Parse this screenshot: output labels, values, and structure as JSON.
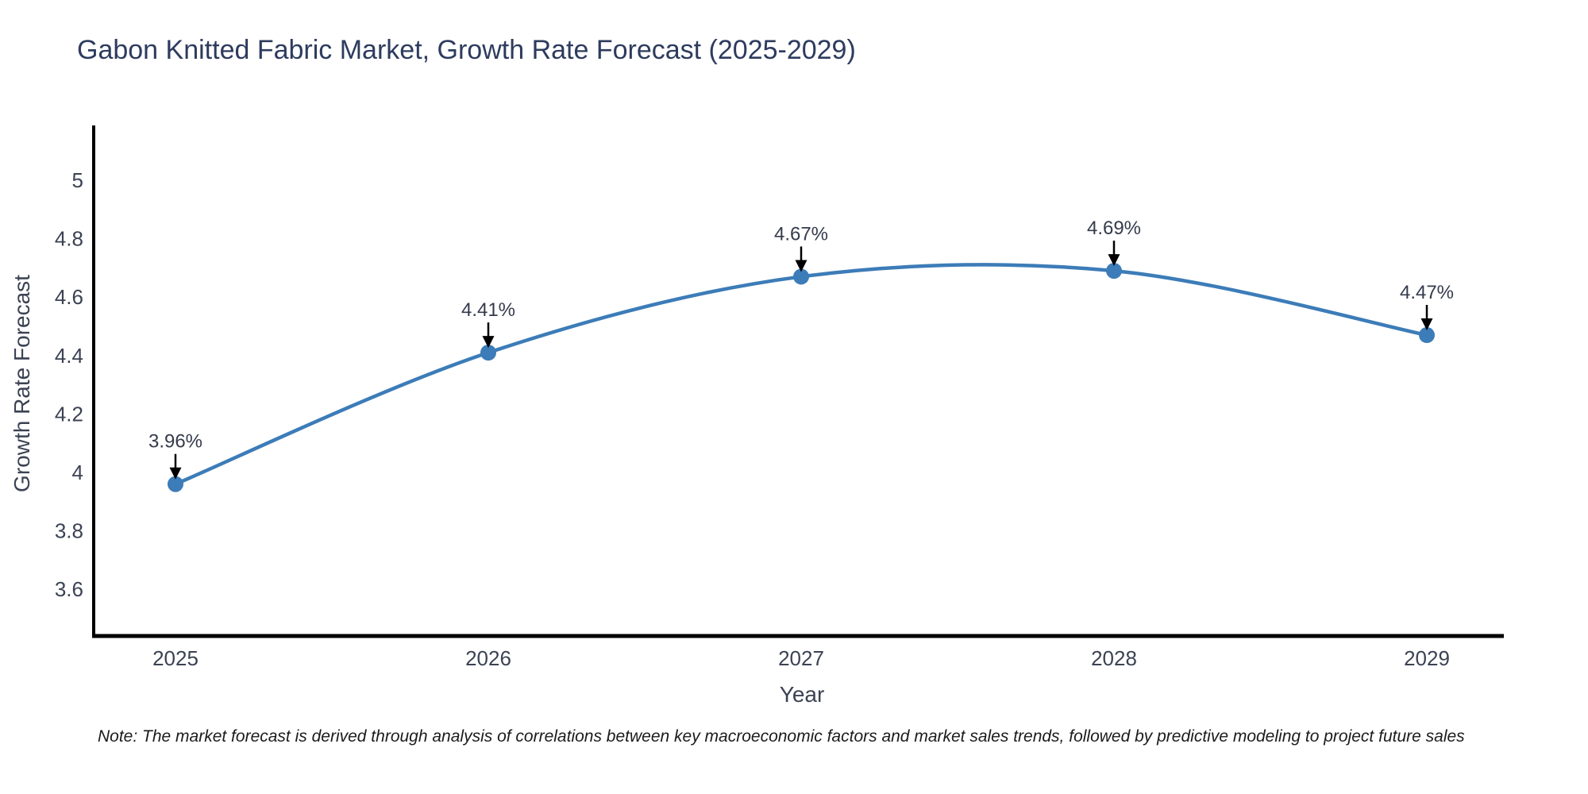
{
  "title": "Gabon Knitted Fabric Market, Growth Rate Forecast (2025-2029)",
  "note": "Note: The market forecast is derived through analysis of correlations between key macroeconomic factors and market sales trends, followed by predictive modeling to project future sales",
  "x_axis": {
    "title": "Year"
  },
  "y_axis": {
    "title": "Growth Rate Forecast"
  },
  "chart_data": {
    "type": "line",
    "title": "Gabon Knitted Fabric Market, Growth Rate Forecast (2025-2029)",
    "xlabel": "Year",
    "ylabel": "Growth Rate Forecast",
    "x": [
      2025,
      2026,
      2027,
      2028,
      2029
    ],
    "values": [
      3.96,
      4.41,
      4.67,
      4.69,
      4.47
    ],
    "point_labels": [
      "3.96%",
      "4.41%",
      "4.67%",
      "4.69%",
      "4.47%"
    ],
    "yticks": [
      5,
      4.8,
      4.6,
      4.4,
      4.2,
      4,
      3.8,
      3.6
    ],
    "ylim": [
      3.44,
      5.19
    ],
    "grid": false,
    "legend": "none",
    "line_shape": "spline",
    "colors": {
      "line": "#3c7cb8",
      "marker": "#3c7cb8",
      "axis_line": "#000000",
      "arrow": "#000000",
      "title_text": "#2d3b5e",
      "tick_text": "#3b4253",
      "annotation_text": "#343b4c",
      "note_text": "#1b1b1b"
    }
  }
}
